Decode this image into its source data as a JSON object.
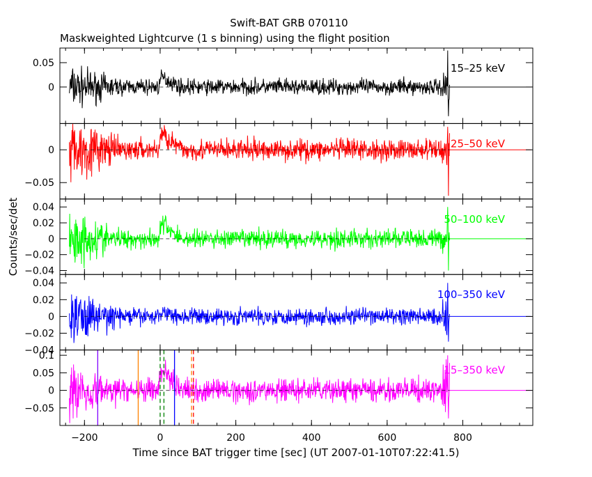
{
  "title": "Swift-BAT GRB 070110",
  "subtitle": "Maskweighted Lightcurve (1 s binning) using the flight position",
  "ylabel": "Counts/sec/det",
  "xlabel": "Time since BAT trigger time [sec] (UT 2007-01-10T07:22:41.5)",
  "chart_data": {
    "type": "line",
    "title": "Swift-BAT GRB 070110",
    "subtitle": "Maskweighted Lightcurve (1 s binning) using the flight position",
    "xlabel": "Time since BAT trigger time [sec] (UT 2007-01-10T07:22:41.5)",
    "ylabel": "Counts/sec/det",
    "xlim": [
      -265,
      985
    ],
    "x_ticks": [
      -200,
      0,
      200,
      400,
      600,
      800
    ],
    "binning_sec": 1,
    "data_range": [
      -240,
      765
    ],
    "panels": [
      {
        "name": "15-25 keV",
        "label": "15–25 keV",
        "color": "#000000",
        "ylim": [
          -0.075,
          0.08
        ],
        "y_ticks": [
          0,
          0.05
        ],
        "y_tick_labels": [
          "0",
          "0.05"
        ],
        "noise_early": 0.022,
        "noise_late": 0.008,
        "burst_peak": 0.022,
        "end_spike": 0.075,
        "end_dip": -0.06
      },
      {
        "name": "25-50 keV",
        "label": "25–50 keV",
        "color": "#ff0000",
        "ylim": [
          -0.075,
          0.04
        ],
        "y_ticks": [
          -0.05,
          0
        ],
        "y_tick_labels": [
          "−0.05",
          "0"
        ],
        "noise_early": 0.025,
        "noise_late": 0.008,
        "burst_peak": 0.028,
        "end_spike": 0.035,
        "end_dip": -0.07
      },
      {
        "name": "50-100 keV",
        "label": "50–100 keV",
        "color": "#00ff00",
        "ylim": [
          -0.045,
          0.05
        ],
        "y_ticks": [
          -0.04,
          -0.02,
          0,
          0.02,
          0.04
        ],
        "y_tick_labels": [
          "−0.04",
          "−0.02",
          "0",
          "0.02",
          "0.04"
        ],
        "noise_early": 0.018,
        "noise_late": 0.006,
        "burst_peak": 0.022,
        "end_spike": 0.04,
        "end_dip": -0.04
      },
      {
        "name": "100-350 keV",
        "label": "100–350 keV",
        "color": "#0000ff",
        "ylim": [
          -0.04,
          0.05
        ],
        "y_ticks": [
          -0.04,
          -0.02,
          0,
          0.02,
          0.04
        ],
        "y_tick_labels": [
          "−0.04",
          "−0.02",
          "0",
          "0.02",
          "0.04"
        ],
        "noise_early": 0.016,
        "noise_late": 0.005,
        "burst_peak": 0.006,
        "end_spike": 0.04,
        "end_dip": -0.03
      },
      {
        "name": "15-350 keV",
        "label": "15–350 keV",
        "color": "#ff00ff",
        "ylim": [
          -0.1,
          0.115
        ],
        "y_ticks": [
          -0.05,
          0,
          0.05,
          0.1
        ],
        "y_tick_labels": [
          "−0.05",
          "0",
          "0.05",
          "0.1"
        ],
        "noise_early": 0.04,
        "noise_late": 0.016,
        "burst_peak": 0.07,
        "end_spike": 0.1,
        "end_dip": -0.08
      }
    ],
    "burst": {
      "onset": -5,
      "peak_time": 5,
      "end_time": 55
    },
    "markers": [
      {
        "x": -165,
        "color": "#8000ff",
        "style": "solid"
      },
      {
        "x": -58,
        "color": "#ff8000",
        "style": "solid"
      },
      {
        "x": 0,
        "color": "#008000",
        "style": "dashed"
      },
      {
        "x": 10,
        "color": "#008000",
        "style": "dashed"
      },
      {
        "x": 38,
        "color": "#0000ff",
        "style": "solid"
      },
      {
        "x": 83,
        "color": "#ff8000",
        "style": "dashed"
      },
      {
        "x": 88,
        "color": "#ff0000",
        "style": "dashed"
      }
    ]
  }
}
